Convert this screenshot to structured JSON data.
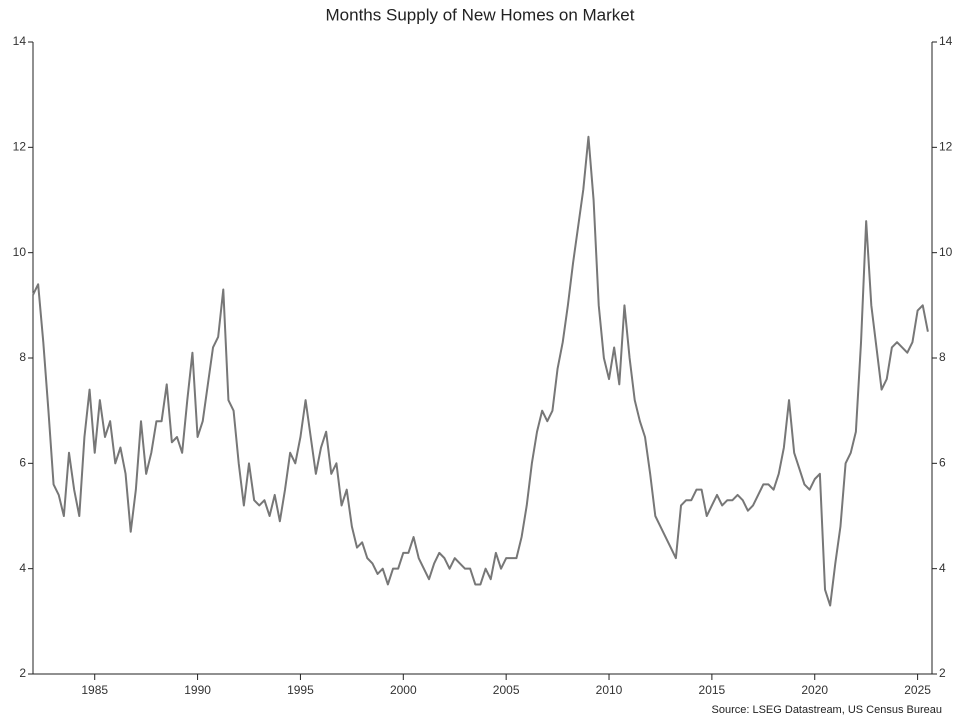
{
  "chart_data": {
    "type": "line",
    "title": "Months Supply of New  Homes on Market",
    "source": "Source: LSEG Datastream, US Census Bureau",
    "x": [
      1982,
      1982.25,
      1982.5,
      1982.75,
      1983,
      1983.25,
      1983.5,
      1983.75,
      1984,
      1984.25,
      1984.5,
      1984.75,
      1985,
      1985.25,
      1985.5,
      1985.75,
      1986,
      1986.25,
      1986.5,
      1986.75,
      1987,
      1987.25,
      1987.5,
      1987.75,
      1988,
      1988.25,
      1988.5,
      1988.75,
      1989,
      1989.25,
      1989.5,
      1989.75,
      1990,
      1990.25,
      1990.5,
      1990.75,
      1991,
      1991.25,
      1991.5,
      1991.75,
      1992,
      1992.25,
      1992.5,
      1992.75,
      1993,
      1993.25,
      1993.5,
      1993.75,
      1994,
      1994.25,
      1994.5,
      1994.75,
      1995,
      1995.25,
      1995.5,
      1995.75,
      1996,
      1996.25,
      1996.5,
      1996.75,
      1997,
      1997.25,
      1997.5,
      1997.75,
      1998,
      1998.25,
      1998.5,
      1998.75,
      1999,
      1999.25,
      1999.5,
      1999.75,
      2000,
      2000.25,
      2000.5,
      2000.75,
      2001,
      2001.25,
      2001.5,
      2001.75,
      2002,
      2002.25,
      2002.5,
      2002.75,
      2003,
      2003.25,
      2003.5,
      2003.75,
      2004,
      2004.25,
      2004.5,
      2004.75,
      2005,
      2005.25,
      2005.5,
      2005.75,
      2006,
      2006.25,
      2006.5,
      2006.75,
      2007,
      2007.25,
      2007.5,
      2007.75,
      2008,
      2008.25,
      2008.5,
      2008.75,
      2009,
      2009.25,
      2009.5,
      2009.75,
      2010,
      2010.25,
      2010.5,
      2010.75,
      2011,
      2011.25,
      2011.5,
      2011.75,
      2012,
      2012.25,
      2012.5,
      2012.75,
      2013,
      2013.25,
      2013.5,
      2013.75,
      2014,
      2014.25,
      2014.5,
      2014.75,
      2015,
      2015.25,
      2015.5,
      2015.75,
      2016,
      2016.25,
      2016.5,
      2016.75,
      2017,
      2017.25,
      2017.5,
      2017.75,
      2018,
      2018.25,
      2018.5,
      2018.75,
      2019,
      2019.25,
      2019.5,
      2019.75,
      2020,
      2020.25,
      2020.5,
      2020.75,
      2021,
      2021.25,
      2021.5,
      2021.75,
      2022,
      2022.25,
      2022.5,
      2022.75,
      2023,
      2023.25,
      2023.5,
      2023.75,
      2024,
      2024.25,
      2024.5,
      2024.75,
      2025,
      2025.25,
      2025.5
    ],
    "series": [
      {
        "name": "Months Supply",
        "color": "#777777",
        "values": [
          9.2,
          9.4,
          8.3,
          7.0,
          5.6,
          5.4,
          5.0,
          6.2,
          5.5,
          5.0,
          6.5,
          7.4,
          6.2,
          7.2,
          6.5,
          6.8,
          6.0,
          6.3,
          5.8,
          4.7,
          5.5,
          6.8,
          5.8,
          6.2,
          6.8,
          6.8,
          7.5,
          6.4,
          6.5,
          6.2,
          7.2,
          8.1,
          6.5,
          6.8,
          7.5,
          8.2,
          8.4,
          9.3,
          7.2,
          7.0,
          6.0,
          5.2,
          6.0,
          5.3,
          5.2,
          5.3,
          5.0,
          5.4,
          4.9,
          5.5,
          6.2,
          6.0,
          6.5,
          7.2,
          6.5,
          5.8,
          6.3,
          6.6,
          5.8,
          6.0,
          5.2,
          5.5,
          4.8,
          4.4,
          4.5,
          4.2,
          4.1,
          3.9,
          4.0,
          3.7,
          4.0,
          4.0,
          4.3,
          4.3,
          4.6,
          4.2,
          4.0,
          3.8,
          4.1,
          4.3,
          4.2,
          4.0,
          4.2,
          4.1,
          4.0,
          4.0,
          3.7,
          3.7,
          4.0,
          3.8,
          4.3,
          4.0,
          4.2,
          4.2,
          4.2,
          4.6,
          5.2,
          6.0,
          6.6,
          7.0,
          6.8,
          7.0,
          7.8,
          8.3,
          9.0,
          9.8,
          10.5,
          11.2,
          12.2,
          11.0,
          9.0,
          8.0,
          7.6,
          8.2,
          7.5,
          9.0,
          8.0,
          7.2,
          6.8,
          6.5,
          5.8,
          5.0,
          4.8,
          4.6,
          4.4,
          4.2,
          5.2,
          5.3,
          5.3,
          5.5,
          5.5,
          5.0,
          5.2,
          5.4,
          5.2,
          5.3,
          5.3,
          5.4,
          5.3,
          5.1,
          5.2,
          5.4,
          5.6,
          5.6,
          5.5,
          5.8,
          6.3,
          7.2,
          6.2,
          5.9,
          5.6,
          5.5,
          5.7,
          5.8,
          3.6,
          3.3,
          4.1,
          4.8,
          6.0,
          6.2,
          6.6,
          8.3,
          10.6,
          9.0,
          8.2,
          7.4,
          7.6,
          8.2,
          8.3,
          8.2,
          8.1,
          8.3,
          8.9,
          9.0,
          8.5
        ]
      }
    ],
    "xlim": [
      1982,
      2025.7
    ],
    "xticks": [
      1985,
      1990,
      1995,
      2000,
      2005,
      2010,
      2015,
      2020,
      2025
    ],
    "ylim": [
      2,
      14
    ],
    "yticks": [
      2,
      4,
      6,
      8,
      10,
      12,
      14
    ],
    "grid": false
  }
}
